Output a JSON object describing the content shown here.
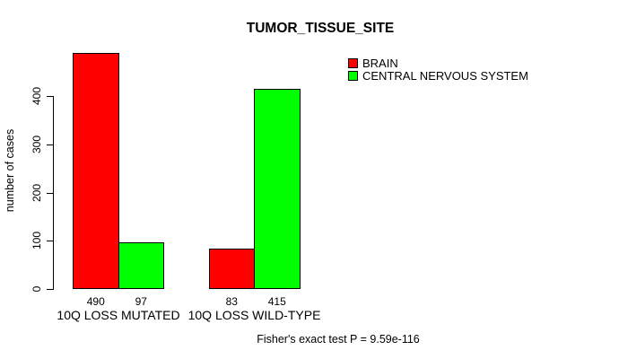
{
  "chart_data": {
    "type": "bar",
    "title": "TUMOR_TISSUE_SITE",
    "categories": [
      "10Q LOSS MUTATED",
      "10Q LOSS WILD-TYPE"
    ],
    "series": [
      {
        "name": "BRAIN",
        "color": "#FF0000",
        "values": [
          490,
          83
        ]
      },
      {
        "name": "CENTRAL NERVOUS SYSTEM",
        "color": "#00FF00",
        "values": [
          97,
          415
        ]
      }
    ],
    "ylabel": "number of cases",
    "xlabel": "",
    "yticks": [
      0,
      100,
      200,
      300,
      400
    ],
    "ylim": [
      0,
      490
    ],
    "grid": false,
    "legend_position": "top-right",
    "bar_value_labels": [
      [
        490,
        97
      ],
      [
        83,
        415
      ]
    ],
    "annotation": "Fisher's exact test P = 9.59e-116"
  }
}
